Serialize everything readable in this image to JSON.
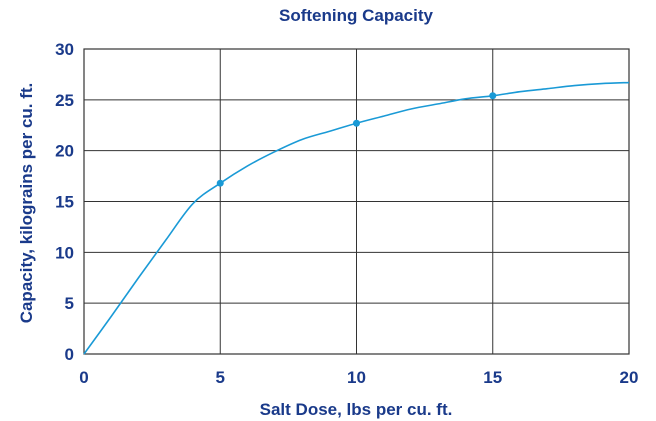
{
  "chart_data": {
    "type": "line",
    "title": "Softening Capacity",
    "xlabel": "Salt Dose, lbs per cu. ft.",
    "ylabel": "Capacity, kilograins per cu. ft.",
    "xlim": [
      0,
      20
    ],
    "ylim": [
      0,
      30
    ],
    "x_ticks": [
      "0",
      "5",
      "10",
      "15",
      "20"
    ],
    "y_ticks": [
      "0",
      "5",
      "10",
      "15",
      "20",
      "25",
      "30"
    ],
    "grid": true,
    "legend": "none",
    "series": [
      {
        "x": [
          0,
          1,
          2,
          3,
          4,
          5,
          6,
          7,
          8,
          9,
          10,
          11,
          12,
          13,
          14,
          15,
          16,
          17,
          18,
          19,
          20
        ],
        "values": [
          0,
          3.7,
          7.5,
          11.2,
          14.8,
          16.8,
          18.5,
          19.9,
          21.1,
          21.9,
          22.7,
          23.4,
          24.1,
          24.6,
          25.1,
          25.4,
          25.8,
          26.1,
          26.4,
          26.6,
          26.7
        ],
        "color": "#1a9ad6"
      }
    ],
    "markers": [
      {
        "x": 5,
        "y": 16.8
      },
      {
        "x": 10,
        "y": 22.7
      },
      {
        "x": 15,
        "y": 25.4
      }
    ],
    "colors": {
      "text": "#1a3a8a",
      "line": "#1a9ad6",
      "grid": "#333333"
    }
  }
}
